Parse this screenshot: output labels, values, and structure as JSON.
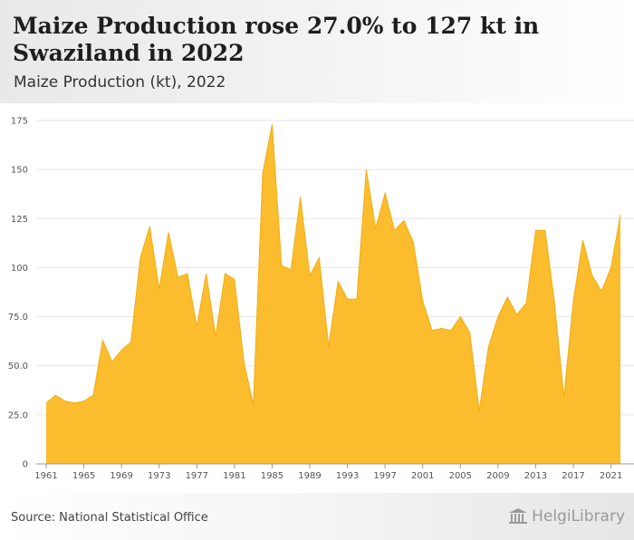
{
  "header": {
    "title": "Maize Production rose 27.0% to 127 kt in Swaziland in 2022",
    "subtitle": "Maize Production (kt), 2022"
  },
  "footer": {
    "source": "Source: National Statistical Office",
    "brand": "HelgiLibrary"
  },
  "colors": {
    "area_fill": "#fbbd2e",
    "area_stroke": "#f0ae12",
    "grid": "#e6e6e6",
    "axis": "#999999"
  },
  "chart_data": {
    "type": "area",
    "title": "Maize Production rose 27.0% to 127 kt in Swaziland in 2022",
    "subtitle": "Maize Production (kt), 2022",
    "xlabel": "",
    "ylabel": "",
    "ylim": [
      0,
      175
    ],
    "xlim": [
      1961,
      2022
    ],
    "yticks": [
      0,
      25.0,
      50.0,
      75.0,
      100,
      125,
      150,
      175
    ],
    "ytick_labels": [
      "0",
      "25.0",
      "50.0",
      "75.0",
      "100",
      "125",
      "150",
      "175"
    ],
    "xticks": [
      1961,
      1965,
      1969,
      1973,
      1977,
      1981,
      1985,
      1989,
      1993,
      1997,
      2001,
      2005,
      2009,
      2013,
      2017,
      2021
    ],
    "grid": true,
    "legend": "none",
    "x": [
      1961,
      1962,
      1963,
      1964,
      1965,
      1966,
      1967,
      1968,
      1969,
      1970,
      1971,
      1972,
      1973,
      1974,
      1975,
      1976,
      1977,
      1978,
      1979,
      1980,
      1981,
      1982,
      1983,
      1984,
      1985,
      1986,
      1987,
      1988,
      1989,
      1990,
      1991,
      1992,
      1993,
      1994,
      1995,
      1996,
      1997,
      1998,
      1999,
      2000,
      2001,
      2002,
      2003,
      2004,
      2005,
      2006,
      2007,
      2008,
      2009,
      2010,
      2011,
      2012,
      2013,
      2014,
      2015,
      2016,
      2017,
      2018,
      2019,
      2020,
      2021,
      2022
    ],
    "series": [
      {
        "values": [
          31,
          35,
          32,
          31,
          32,
          35,
          63,
          52,
          58,
          62,
          105,
          121,
          89,
          118,
          95,
          97,
          70,
          97,
          65,
          97,
          94,
          52,
          30,
          148,
          173,
          101,
          99,
          136,
          96,
          105,
          60,
          93,
          84,
          84,
          150,
          120,
          138,
          119,
          124,
          113,
          83,
          68,
          69,
          68,
          75,
          67,
          27,
          60,
          75,
          85,
          76,
          82,
          119,
          119,
          82,
          34,
          83,
          114,
          96,
          88,
          100,
          127
        ]
      }
    ]
  }
}
